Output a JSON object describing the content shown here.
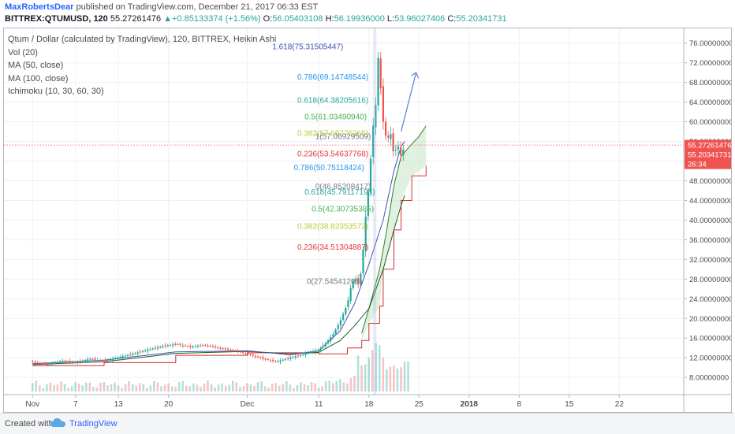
{
  "header": {
    "author": "MaxRobertsDear",
    "published_text": "published on TradingView.com, December 21, 2017 06:33 EST",
    "symbol": "BITTREX:QTUMUSD, 120",
    "last": "55.27261476",
    "change": "+0.85133374 (+1.56%)",
    "o_label": "O:",
    "o_value": "56.05403108",
    "h_label": "H:",
    "h_value": "56.19936000",
    "l_label": "L:",
    "l_value": "53.96027406",
    "c_label": "C:",
    "c_value": "55.20341731"
  },
  "legend": [
    "Qtum / Dollar (calculated by TradingView), 120, BITTREX, Heikin Ashi",
    "Vol (20)",
    "MA (50, close)",
    "MA (100, close)",
    "Ichimoku (10, 30, 60, 30)"
  ],
  "footer": {
    "created_with": "Created with",
    "brand": "TradingView"
  },
  "colors": {
    "up": "#26a69a",
    "down": "#ef5350",
    "grid": "#eef0f3",
    "ma50": "#3f51b5",
    "ma100": "#1b5e20",
    "ichimoku_lead": "#d32f2f",
    "ichimoku_base": "#2e7d32",
    "arrow": "#5c7fd6"
  },
  "chart_data": {
    "type": "candlestick",
    "y_axis": {
      "ticks": [
        8,
        12,
        16,
        20,
        24,
        28,
        32,
        36,
        40,
        44,
        48,
        52,
        56,
        60,
        64,
        68,
        72,
        76
      ],
      "tick_labels": [
        "8.00000000",
        "12.00000000",
        "16.00000000",
        "20.00000000",
        "24.00000000",
        "28.00000000",
        "32.00000000",
        "36.00000000",
        "40.00000000",
        "44.00000000",
        "48.00000000",
        "52.00000000",
        "56.00000000",
        "60.00000000",
        "64.00000000",
        "68.00000000",
        "72.00000000",
        "76.00000000"
      ],
      "range": [
        4.5,
        79
      ]
    },
    "x_axis": {
      "labels": [
        "Nov",
        "7",
        "13",
        "20",
        "Dec",
        "11",
        "18",
        "25",
        "2018",
        "8",
        "15",
        "22"
      ],
      "day_index": [
        0,
        6,
        12,
        19,
        30,
        40,
        47,
        54,
        61,
        68,
        75,
        82
      ],
      "range": [
        -4,
        91
      ]
    },
    "price_labels": [
      {
        "value": 55.27261476,
        "text": "55.27261476",
        "color": "#ef5350"
      },
      {
        "value": 55.20341731,
        "text": "55.20341731",
        "color": "#ef5350"
      },
      {
        "value": 53.1,
        "text": "26:34",
        "color": "#ef5350"
      }
    ],
    "current_price": 55.27261476,
    "fib_labels": [
      {
        "text": "1.618(75.31505447)",
        "value": 75.31505447,
        "color": "#3f51b5"
      },
      {
        "text": "0.786(69.14748544)",
        "value": 69.14748544,
        "color": "#2196f3"
      },
      {
        "text": "0.618(64.38205616)",
        "value": 64.38205616,
        "color": "#26a69a"
      },
      {
        "text": "0.5(61.03490940)",
        "value": 61.0349094,
        "color": "#4caf50"
      },
      {
        "text": "0.382(57.69776265)",
        "value": 57.69776265,
        "color": "#c0ca33"
      },
      {
        "text": "1(57.06929509)",
        "value": 57.06929509,
        "color": "#787b86"
      },
      {
        "text": "0.236(53.54637768)",
        "value": 53.54637768,
        "color": "#e53935"
      },
      {
        "text": "0.786(50.75118424)",
        "value": 50.75118424,
        "color": "#2196f3"
      },
      {
        "text": "0(46.85208417)",
        "value": 46.85208417,
        "color": "#787b86"
      },
      {
        "text": "0.618(45.79117198)",
        "value": 45.79117198,
        "color": "#26a69a"
      },
      {
        "text": "0.5(42.30735385)",
        "value": 42.30735385,
        "color": "#4caf50"
      },
      {
        "text": "0.382(38.82353572)",
        "value": 38.82353572,
        "color": "#c0ca33"
      },
      {
        "text": "0.236(34.51304887)",
        "value": 34.51304887,
        "color": "#e53935"
      },
      {
        "text": "0(27.54541203)",
        "value": 27.54541203,
        "color": "#787b86"
      }
    ],
    "fib_label_day": [
      33.5,
      37,
      37,
      38,
      37,
      39.5,
      37,
      36.5,
      39.5,
      38,
      39,
      37,
      37,
      38.3
    ],
    "price_path": [
      [
        0,
        11.2
      ],
      [
        2,
        10.6
      ],
      [
        4,
        11.4
      ],
      [
        6,
        11.0
      ],
      [
        8,
        11.8
      ],
      [
        10,
        11.3
      ],
      [
        12,
        12.1
      ],
      [
        14,
        12.8
      ],
      [
        16,
        13.6
      ],
      [
        18,
        14.3
      ],
      [
        20,
        14.8
      ],
      [
        22,
        14.2
      ],
      [
        24,
        14.6
      ],
      [
        26,
        14.0
      ],
      [
        28,
        13.5
      ],
      [
        30,
        12.8
      ],
      [
        32,
        11.9
      ],
      [
        34,
        11.2
      ],
      [
        36,
        12.0
      ],
      [
        38,
        12.8
      ],
      [
        40,
        13.6
      ],
      [
        41,
        15.0
      ],
      [
        42,
        16.8
      ],
      [
        43,
        19.5
      ],
      [
        44,
        23.0
      ],
      [
        44.5,
        26.5
      ],
      [
        45,
        28.4
      ],
      [
        45.5,
        27.0
      ],
      [
        46,
        30.0
      ],
      [
        46.5,
        40.0
      ],
      [
        47,
        47.0
      ],
      [
        47.5,
        58.0
      ],
      [
        48,
        64.0
      ],
      [
        48.3,
        73.0
      ],
      [
        48.7,
        66.0
      ],
      [
        49,
        60.0
      ],
      [
        49.5,
        56.0
      ],
      [
        50,
        58.0
      ],
      [
        50.5,
        53.0
      ],
      [
        51,
        55.5
      ],
      [
        51.5,
        53.0
      ],
      [
        52,
        55.2
      ]
    ],
    "ma50": [
      [
        0,
        10.8
      ],
      [
        10,
        11.5
      ],
      [
        20,
        13.2
      ],
      [
        30,
        13.4
      ],
      [
        36,
        12.6
      ],
      [
        40,
        13.4
      ],
      [
        43,
        17.5
      ],
      [
        45,
        23.0
      ],
      [
        47,
        31.0
      ],
      [
        49,
        40.0
      ],
      [
        50.5,
        50.0
      ],
      [
        51.5,
        55.0
      ],
      [
        52,
        56.0
      ]
    ],
    "ma100": [
      [
        0,
        10.6
      ],
      [
        10,
        11.2
      ],
      [
        20,
        12.9
      ],
      [
        30,
        13.3
      ],
      [
        36,
        12.8
      ],
      [
        40,
        13.1
      ],
      [
        43,
        15.5
      ],
      [
        45,
        18.5
      ],
      [
        47,
        22.0
      ],
      [
        49,
        30.0
      ],
      [
        50.5,
        38.0
      ],
      [
        51.5,
        43.0
      ],
      [
        52,
        45.0
      ]
    ],
    "ichimoku_span_b": [
      [
        0,
        10.4
      ],
      [
        10,
        11.0
      ],
      [
        20,
        12.5
      ],
      [
        30,
        13.0
      ],
      [
        40,
        12.8
      ],
      [
        44,
        14.0
      ],
      [
        46,
        15.5
      ],
      [
        47,
        19.0
      ],
      [
        48.5,
        22.5
      ],
      [
        49,
        30.0
      ],
      [
        50.5,
        38.0
      ],
      [
        51.5,
        44.0
      ],
      [
        53,
        49.0
      ],
      [
        55,
        51.0
      ]
    ],
    "ichimoku_span_a": [
      [
        46,
        17.0
      ],
      [
        47,
        22.0
      ],
      [
        48.5,
        30.0
      ],
      [
        49.5,
        38.0
      ],
      [
        50.5,
        47.0
      ],
      [
        51.5,
        53.0
      ],
      [
        53,
        55.5
      ],
      [
        54,
        57.0
      ],
      [
        55,
        59.2
      ]
    ],
    "arrow": {
      "from": [
        51.5,
        58.0
      ],
      "to": [
        53.6,
        70.0
      ]
    },
    "volume_note": "volume bars along the bottom, spike around Dec 17-19"
  }
}
